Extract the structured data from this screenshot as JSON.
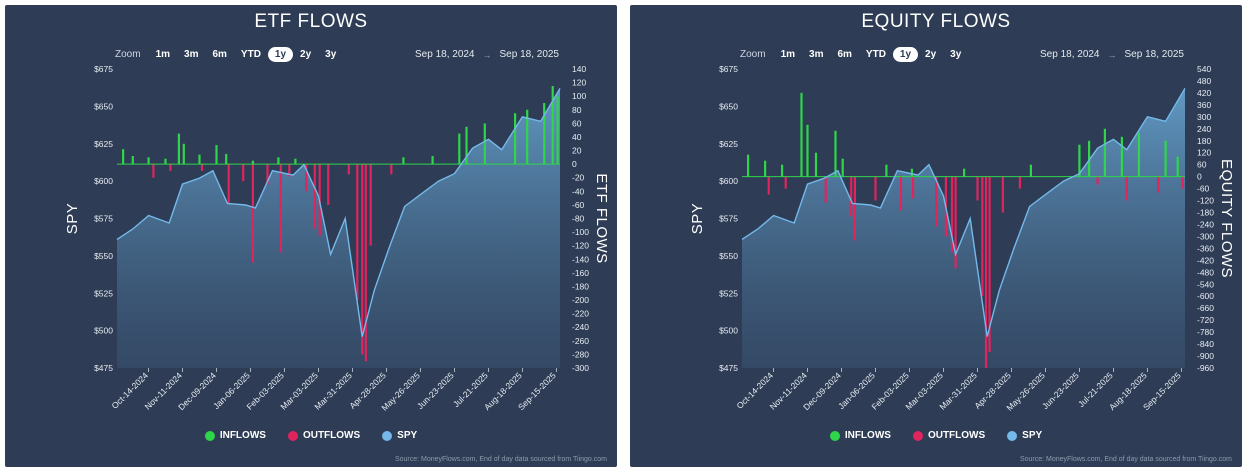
{
  "colors": {
    "inflow": "#2fd64a",
    "outflow": "#e0245e",
    "spy_line": "#74b9ea",
    "panel_bg": "#2e3d55"
  },
  "charts": [
    {
      "id": "etf",
      "title": "ETF FLOWS",
      "zoom": {
        "label": "Zoom",
        "options": [
          "1m",
          "3m",
          "6m",
          "YTD",
          "1y",
          "2y",
          "3y"
        ],
        "selected": "1y"
      },
      "range": {
        "from": "Sep 18, 2024",
        "arrow": "→",
        "to": "Sep 18, 2025"
      },
      "legend": [
        {
          "label": "INFLOWS",
          "color": "#2fd64a"
        },
        {
          "label": "OUTFLOWS",
          "color": "#e0245e"
        },
        {
          "label": "SPY",
          "color": "#74b9ea"
        }
      ],
      "source": "Source: MoneyFlows.com, End of day data sourced from Tiingo.com"
    },
    {
      "id": "eq",
      "title": "EQUITY FLOWS",
      "zoom": {
        "label": "Zoom",
        "options": [
          "1m",
          "3m",
          "6m",
          "YTD",
          "1y",
          "2y",
          "3y"
        ],
        "selected": "1y"
      },
      "range": {
        "from": "Sep 18, 2024",
        "arrow": "→",
        "to": "Sep 18, 2025"
      },
      "legend": [
        {
          "label": "INFLOWS",
          "color": "#2fd64a"
        },
        {
          "label": "OUTFLOWS",
          "color": "#e0245e"
        },
        {
          "label": "SPY",
          "color": "#74b9ea"
        }
      ],
      "source": "Source: MoneyFlows.com, End of day data sourced from Tiingo.com"
    }
  ],
  "chart_data": [
    {
      "type": "bar",
      "title": "ETF FLOWS",
      "ylabel": "SPY",
      "y2label": "ETF FLOWS",
      "grid": false,
      "legend_placement": "bottom",
      "ylim": [
        475,
        675
      ],
      "y_ticks": [
        "$675",
        "$650",
        "$625",
        "$600",
        "$575",
        "$550",
        "$525",
        "$500",
        "$475"
      ],
      "y_tick_values": [
        675,
        650,
        625,
        600,
        575,
        550,
        525,
        500,
        475
      ],
      "y2lim": [
        -300,
        140
      ],
      "y2_ticks": [
        140,
        120,
        100,
        80,
        60,
        40,
        20,
        0,
        -20,
        -40,
        -60,
        -80,
        -100,
        -120,
        -140,
        -160,
        -180,
        -200,
        -220,
        -240,
        -260,
        -280,
        -300
      ],
      "x_ticks": [
        "Oct-14-2024",
        "Nov-11-2024",
        "Dec-09-2024",
        "Jan-06-2025",
        "Feb-03-2025",
        "Mar-03-2025",
        "Mar-31-2025",
        "Apr-28-2025",
        "May-26-2025",
        "Jun-23-2025",
        "Jul-21-2025",
        "Aug-18-2025",
        "Sep-15-2025"
      ],
      "x_range": [
        "2024-09-18",
        "2025-09-18"
      ],
      "series": [
        {
          "name": "SPY",
          "kind": "area",
          "points": [
            [
              "2024-09-18",
              561
            ],
            [
              "2024-10-01",
              568
            ],
            [
              "2024-10-14",
              577
            ],
            [
              "2024-10-31",
              572
            ],
            [
              "2024-11-11",
              598
            ],
            [
              "2024-11-25",
              602
            ],
            [
              "2024-12-06",
              607
            ],
            [
              "2024-12-18",
              585
            ],
            [
              "2025-01-02",
              584
            ],
            [
              "2025-01-10",
              582
            ],
            [
              "2025-01-24",
              607
            ],
            [
              "2025-02-10",
              604
            ],
            [
              "2025-02-19",
              611
            ],
            [
              "2025-03-03",
              590
            ],
            [
              "2025-03-13",
              551
            ],
            [
              "2025-03-25",
              575
            ],
            [
              "2025-04-08",
              496
            ],
            [
              "2025-04-18",
              527
            ],
            [
              "2025-04-30",
              555
            ],
            [
              "2025-05-13",
              583
            ],
            [
              "2025-05-26",
              591
            ],
            [
              "2025-06-10",
              600
            ],
            [
              "2025-06-23",
              605
            ],
            [
              "2025-07-08",
              622
            ],
            [
              "2025-07-21",
              628
            ],
            [
              "2025-08-01",
              621
            ],
            [
              "2025-08-18",
              643
            ],
            [
              "2025-09-02",
              640
            ],
            [
              "2025-09-18",
              662
            ]
          ]
        },
        {
          "name": "INFLOWS",
          "kind": "bar",
          "points": [
            [
              "2024-09-23",
              22
            ],
            [
              "2024-10-01",
              12
            ],
            [
              "2024-10-14",
              10
            ],
            [
              "2024-10-28",
              8
            ],
            [
              "2024-11-08",
              45
            ],
            [
              "2024-11-12",
              30
            ],
            [
              "2024-11-25",
              14
            ],
            [
              "2024-12-09",
              28
            ],
            [
              "2024-12-17",
              15
            ],
            [
              "2025-01-08",
              5
            ],
            [
              "2025-01-29",
              10
            ],
            [
              "2025-02-12",
              8
            ],
            [
              "2025-05-12",
              10
            ],
            [
              "2025-06-05",
              12
            ],
            [
              "2025-06-27",
              45
            ],
            [
              "2025-07-03",
              55
            ],
            [
              "2025-07-18",
              60
            ],
            [
              "2025-08-12",
              75
            ],
            [
              "2025-08-22",
              80
            ],
            [
              "2025-09-05",
              90
            ],
            [
              "2025-09-12",
              115
            ],
            [
              "2025-09-16",
              100
            ]
          ]
        },
        {
          "name": "OUTFLOWS",
          "kind": "bar",
          "points": [
            [
              "2024-10-18",
              -20
            ],
            [
              "2024-11-01",
              -10
            ],
            [
              "2024-11-27",
              -10
            ],
            [
              "2024-12-19",
              -58
            ],
            [
              "2024-12-31",
              -25
            ],
            [
              "2025-01-08",
              -145
            ],
            [
              "2025-01-20",
              -30
            ],
            [
              "2025-01-31",
              -130
            ],
            [
              "2025-02-07",
              -18
            ],
            [
              "2025-02-21",
              -40
            ],
            [
              "2025-02-28",
              -95
            ],
            [
              "2025-03-04",
              -105
            ],
            [
              "2025-03-11",
              -60
            ],
            [
              "2025-03-28",
              -15
            ],
            [
              "2025-04-04",
              -200
            ],
            [
              "2025-04-08",
              -280
            ],
            [
              "2025-04-11",
              -290
            ],
            [
              "2025-04-15",
              -120
            ],
            [
              "2025-05-02",
              -15
            ]
          ]
        }
      ]
    },
    {
      "type": "bar",
      "title": "EQUITY FLOWS",
      "ylabel": "SPY",
      "y2label": "EQUITY FLOWS",
      "grid": false,
      "legend_placement": "bottom",
      "ylim": [
        475,
        675
      ],
      "y_ticks": [
        "$675",
        "$650",
        "$625",
        "$600",
        "$575",
        "$550",
        "$525",
        "$500",
        "$475"
      ],
      "y_tick_values": [
        675,
        650,
        625,
        600,
        575,
        550,
        525,
        500,
        475
      ],
      "y2lim": [
        -960,
        540
      ],
      "y2_ticks": [
        540,
        480,
        420,
        360,
        300,
        240,
        180,
        120,
        60,
        0,
        -60,
        -120,
        -180,
        -240,
        -300,
        -360,
        -420,
        -480,
        -540,
        -600,
        -660,
        -720,
        -780,
        -840,
        -900,
        -960
      ],
      "x_ticks": [
        "Oct-14-2024",
        "Nov-11-2024",
        "Dec-09-2024",
        "Jan-06-2025",
        "Feb-03-2025",
        "Mar-03-2025",
        "Mar-31-2025",
        "Apr-28-2025",
        "May-26-2025",
        "Jun-23-2025",
        "Jul-21-2025",
        "Aug-18-2025",
        "Sep-15-2025"
      ],
      "x_range": [
        "2024-09-18",
        "2025-09-18"
      ],
      "series": [
        {
          "name": "SPY",
          "kind": "area",
          "points": [
            [
              "2024-09-18",
              561
            ],
            [
              "2024-10-01",
              568
            ],
            [
              "2024-10-14",
              577
            ],
            [
              "2024-10-31",
              572
            ],
            [
              "2024-11-11",
              598
            ],
            [
              "2024-11-25",
              602
            ],
            [
              "2024-12-06",
              607
            ],
            [
              "2024-12-18",
              585
            ],
            [
              "2025-01-02",
              584
            ],
            [
              "2025-01-10",
              582
            ],
            [
              "2025-01-24",
              607
            ],
            [
              "2025-02-10",
              604
            ],
            [
              "2025-02-19",
              611
            ],
            [
              "2025-03-03",
              590
            ],
            [
              "2025-03-13",
              551
            ],
            [
              "2025-03-25",
              575
            ],
            [
              "2025-04-08",
              496
            ],
            [
              "2025-04-18",
              527
            ],
            [
              "2025-04-30",
              555
            ],
            [
              "2025-05-13",
              583
            ],
            [
              "2025-05-26",
              591
            ],
            [
              "2025-06-10",
              600
            ],
            [
              "2025-06-23",
              605
            ],
            [
              "2025-07-08",
              622
            ],
            [
              "2025-07-21",
              628
            ],
            [
              "2025-08-01",
              621
            ],
            [
              "2025-08-18",
              643
            ],
            [
              "2025-09-02",
              640
            ],
            [
              "2025-09-18",
              662
            ]
          ]
        },
        {
          "name": "INFLOWS",
          "kind": "bar",
          "points": [
            [
              "2024-09-23",
              110
            ],
            [
              "2024-10-07",
              80
            ],
            [
              "2024-10-21",
              60
            ],
            [
              "2024-11-06",
              420
            ],
            [
              "2024-11-11",
              260
            ],
            [
              "2024-11-18",
              120
            ],
            [
              "2024-12-04",
              230
            ],
            [
              "2024-12-10",
              90
            ],
            [
              "2025-01-15",
              60
            ],
            [
              "2025-02-05",
              40
            ],
            [
              "2025-03-20",
              40
            ],
            [
              "2025-05-14",
              60
            ],
            [
              "2025-06-23",
              160
            ],
            [
              "2025-07-01",
              180
            ],
            [
              "2025-07-14",
              240
            ],
            [
              "2025-07-28",
              200
            ],
            [
              "2025-08-11",
              220
            ],
            [
              "2025-09-02",
              180
            ],
            [
              "2025-09-12",
              100
            ]
          ]
        },
        {
          "name": "OUTFLOWS",
          "kind": "bar",
          "points": [
            [
              "2024-10-10",
              -90
            ],
            [
              "2024-10-24",
              -60
            ],
            [
              "2024-11-26",
              -130
            ],
            [
              "2024-12-17",
              -200
            ],
            [
              "2024-12-20",
              -320
            ],
            [
              "2025-01-06",
              -120
            ],
            [
              "2025-01-27",
              -170
            ],
            [
              "2025-02-06",
              -110
            ],
            [
              "2025-02-25",
              -250
            ],
            [
              "2025-03-05",
              -300
            ],
            [
              "2025-03-10",
              -380
            ],
            [
              "2025-03-13",
              -460
            ],
            [
              "2025-03-31",
              -120
            ],
            [
              "2025-04-04",
              -600
            ],
            [
              "2025-04-07",
              -960
            ],
            [
              "2025-04-10",
              -880
            ],
            [
              "2025-04-21",
              -180
            ],
            [
              "2025-05-05",
              -60
            ],
            [
              "2025-07-08",
              -40
            ],
            [
              "2025-08-01",
              -120
            ],
            [
              "2025-08-27",
              -80
            ],
            [
              "2025-09-16",
              -60
            ]
          ]
        }
      ]
    }
  ]
}
